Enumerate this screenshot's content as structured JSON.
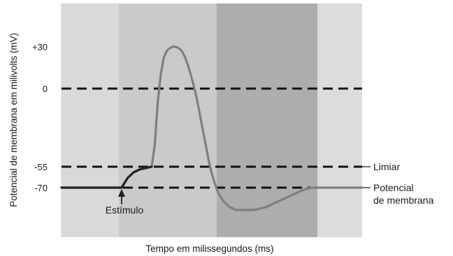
{
  "chart_data": {
    "type": "line",
    "title": "",
    "xlabel": "Tempo em milissegundos (ms)",
    "ylabel": "Potencial de membrana em milivolts (mV)",
    "ylim": [
      -100,
      55
    ],
    "yticks": [
      {
        "value": 30,
        "label": "+30"
      },
      {
        "value": 0,
        "label": "0"
      },
      {
        "value": -55,
        "label": "-55"
      },
      {
        "value": -70,
        "label": "-70"
      }
    ],
    "grid": false,
    "reference_lines": [
      {
        "value": 0,
        "label": ""
      },
      {
        "value": -55,
        "label": "Limiar"
      },
      {
        "value": -70,
        "label": "Potencial\nde membrana"
      }
    ],
    "annotation": {
      "label": "Estímulo",
      "x": 0.2
    },
    "series": [
      {
        "name": "",
        "x": [
          0.0,
          0.08,
          0.16,
          0.19,
          0.2,
          0.22,
          0.24,
          0.26,
          0.28,
          0.3,
          0.3,
          0.31,
          0.32,
          0.33,
          0.34,
          0.35,
          0.36,
          0.37,
          0.38,
          0.39,
          0.4,
          0.41,
          0.42,
          0.43,
          0.44,
          0.45,
          0.46,
          0.47,
          0.48,
          0.49,
          0.5,
          0.51,
          0.52,
          0.53,
          0.54,
          0.55,
          0.56,
          0.57,
          0.58,
          0.6,
          0.62,
          0.64,
          0.66,
          0.68,
          0.7,
          0.72,
          0.74,
          0.76,
          0.78,
          0.8,
          0.83,
          0.86,
          0.88,
          0.9,
          0.95,
          1.0
        ],
        "y": [
          -70,
          -70,
          -70,
          -70,
          -70,
          -63,
          -59,
          -57,
          -56,
          -55,
          -55,
          -40,
          -10,
          10,
          22,
          27,
          29,
          30,
          30,
          29,
          27,
          23,
          17,
          10,
          2,
          -7,
          -18,
          -29,
          -40,
          -51,
          -60,
          -67,
          -73,
          -77,
          -80,
          -82,
          -84,
          -85,
          -86,
          -86,
          -86,
          -86,
          -85,
          -84,
          -82,
          -80,
          -78,
          -76,
          -74,
          -72,
          -70,
          -70,
          -70,
          -70,
          -70,
          -70
        ]
      }
    ]
  }
}
